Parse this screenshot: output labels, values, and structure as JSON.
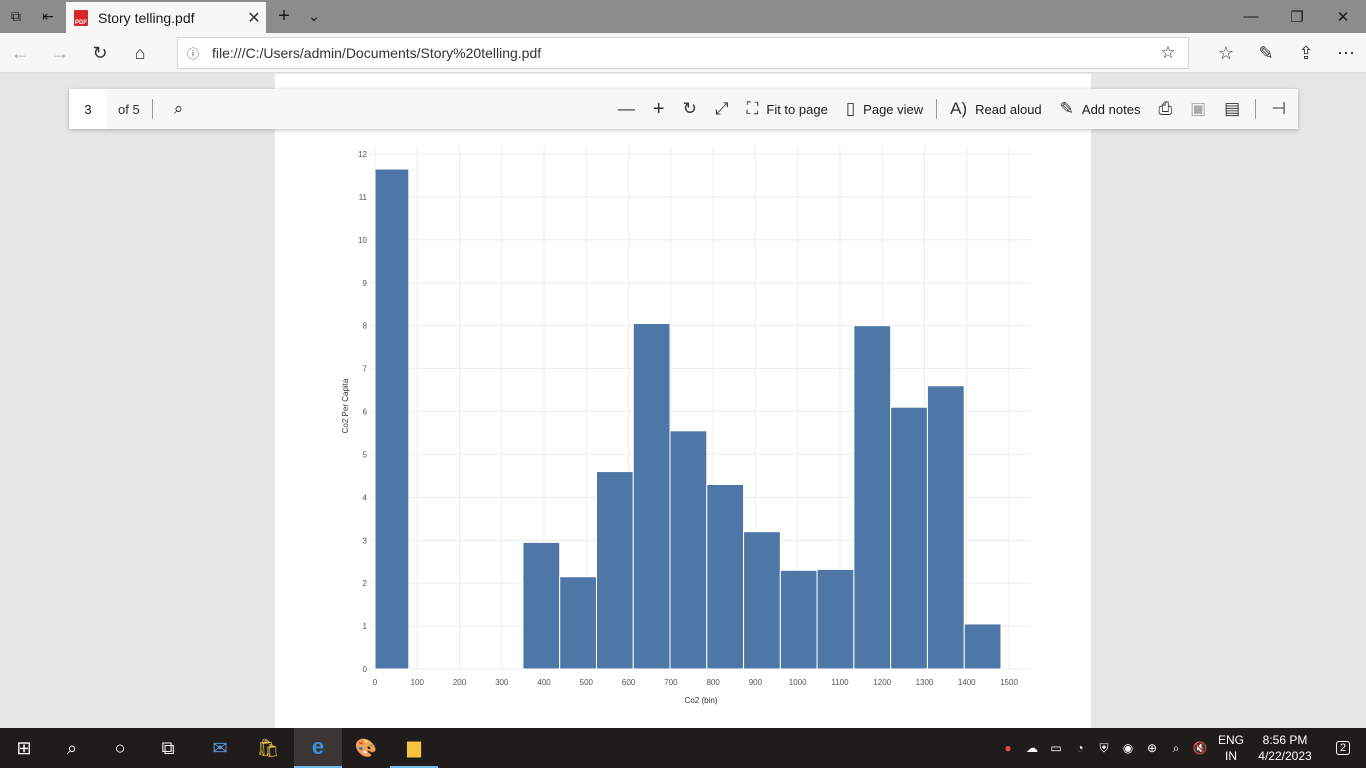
{
  "browser": {
    "tab_title": "Story telling.pdf",
    "url": "file:///C:/Users/admin/Documents/Story%20telling.pdf"
  },
  "pdf_toolbar": {
    "page_number": "3",
    "page_total": "of 5",
    "fit_to_page": "Fit to page",
    "page_view": "Page view",
    "read_aloud": "Read aloud",
    "add_notes": "Add notes"
  },
  "taskbar": {
    "lang_top": "ENG",
    "lang_bottom": "IN",
    "time": "8:56 PM",
    "date": "4/22/2023",
    "notification_count": "2"
  },
  "chart_data": {
    "type": "bar",
    "xlabel": "Co2 (bin)",
    "ylabel": "Co2 Per Capita",
    "xlim": [
      0,
      1500
    ],
    "ylim": [
      0,
      12
    ],
    "grid": true,
    "x_ticks": [
      0,
      100,
      200,
      300,
      400,
      500,
      600,
      700,
      800,
      900,
      1000,
      1100,
      1200,
      1300,
      1400,
      1500
    ],
    "y_ticks": [
      0,
      1,
      2,
      3,
      4,
      5,
      6,
      7,
      8,
      9,
      10,
      11,
      12
    ],
    "bar_color": "#4e77a7",
    "bins": [
      {
        "x0": 0,
        "x1": 80,
        "value": 11.65
      },
      {
        "x0": 350,
        "x1": 437,
        "value": 2.95
      },
      {
        "x0": 437,
        "x1": 524,
        "value": 2.15
      },
      {
        "x0": 524,
        "x1": 611,
        "value": 4.6
      },
      {
        "x0": 611,
        "x1": 698,
        "value": 8.05
      },
      {
        "x0": 698,
        "x1": 785,
        "value": 5.55
      },
      {
        "x0": 785,
        "x1": 872,
        "value": 4.3
      },
      {
        "x0": 872,
        "x1": 959,
        "value": 3.2
      },
      {
        "x0": 959,
        "x1": 1046,
        "value": 2.3
      },
      {
        "x0": 1046,
        "x1": 1133,
        "value": 2.32
      },
      {
        "x0": 1133,
        "x1": 1220,
        "value": 8.0
      },
      {
        "x0": 1220,
        "x1": 1307,
        "value": 6.1
      },
      {
        "x0": 1307,
        "x1": 1394,
        "value": 6.6
      },
      {
        "x0": 1394,
        "x1": 1481,
        "value": 1.05
      }
    ]
  }
}
